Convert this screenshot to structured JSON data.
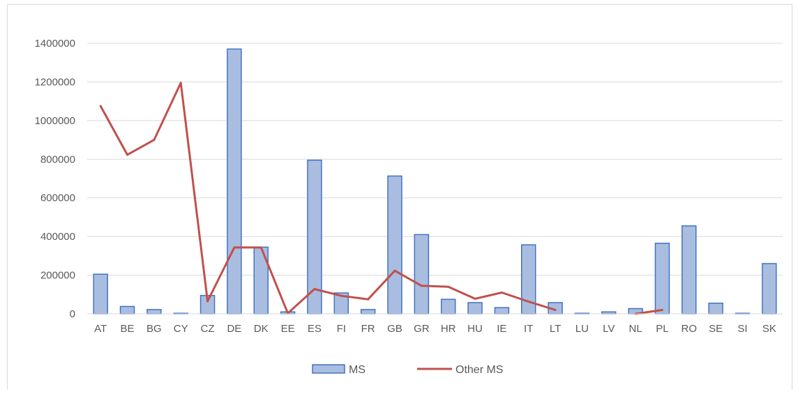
{
  "chart_data": {
    "type": "bar",
    "title": "",
    "xlabel": "",
    "ylabel": "",
    "categories": [
      "AT",
      "BE",
      "BG",
      "CY",
      "CZ",
      "DE",
      "DK",
      "EE",
      "ES",
      "FI",
      "FR",
      "GB",
      "GR",
      "HR",
      "HU",
      "IE",
      "IT",
      "LT",
      "LU",
      "LV",
      "NL",
      "PL",
      "RO",
      "SE",
      "SI",
      "SK"
    ],
    "ylim": [
      0,
      1400000
    ],
    "yticks": [
      "0",
      "200000",
      "400000",
      "600000",
      "800000",
      "1000000",
      "1200000",
      "1400000"
    ],
    "grid": true,
    "legend_position": "bottom",
    "series": [
      {
        "name": "MS",
        "type": "bar",
        "color": "#4472c4",
        "fill": "#a9bde0",
        "values": [
          205000,
          38000,
          22000,
          3000,
          95000,
          1370000,
          345000,
          10000,
          795000,
          108000,
          22000,
          713000,
          410000,
          75000,
          58000,
          32000,
          357000,
          58000,
          3000,
          10000,
          27000,
          365000,
          455000,
          55000,
          3000,
          260000
        ]
      },
      {
        "name": "Other MS",
        "type": "line",
        "color": "#c0504d",
        "values": [
          1075000,
          823000,
          900000,
          1195000,
          65000,
          343000,
          343000,
          3000,
          128000,
          93000,
          75000,
          223000,
          145000,
          140000,
          78000,
          110000,
          63000,
          20000,
          null,
          null,
          0,
          20000,
          null,
          null,
          null,
          null
        ]
      }
    ]
  }
}
